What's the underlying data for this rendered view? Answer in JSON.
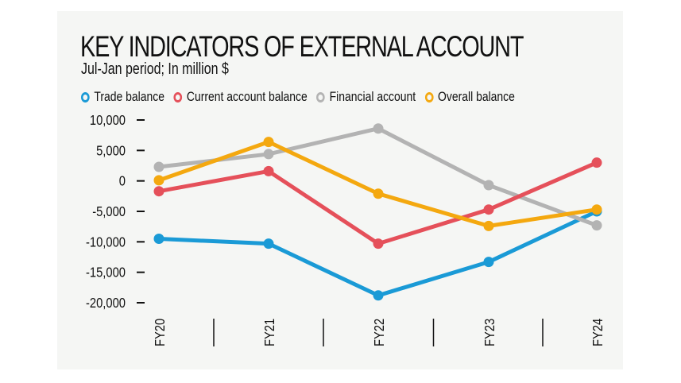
{
  "title": "KEY INDICATORS OF EXTERNAL ACCOUNT",
  "subtitle": "Jul-Jan period; In million $",
  "legend": [
    {
      "label": "Trade balance",
      "color": "#1a9ad6"
    },
    {
      "label": "Current account balance",
      "color": "#e5505a"
    },
    {
      "label": "Financial account",
      "color": "#b3b3b3"
    },
    {
      "label": "Overall balance",
      "color": "#f4a80f"
    }
  ],
  "y_ticks": [
    "10,000",
    "5,000",
    "0",
    "-5,000",
    "-10,000",
    "-15,000",
    "-20,000"
  ],
  "chart_data": {
    "type": "line",
    "title": "KEY INDICATORS OF EXTERNAL ACCOUNT",
    "subtitle": "Jul-Jan period; In million $",
    "xlabel": "",
    "ylabel": "",
    "categories": [
      "FY20",
      "FY21",
      "FY22",
      "FY23",
      "FY24"
    ],
    "ylim": [
      -20000,
      10000
    ],
    "y_ticks": [
      10000,
      5000,
      0,
      -5000,
      -10000,
      -15000,
      -20000
    ],
    "grid": false,
    "legend_position": "top",
    "series": [
      {
        "name": "Trade balance",
        "color": "#1a9ad6",
        "values": [
          -9500,
          -10300,
          -18800,
          -13300,
          -5000
        ]
      },
      {
        "name": "Current account balance",
        "color": "#e5505a",
        "values": [
          -1700,
          1600,
          -10300,
          -4700,
          3000
        ]
      },
      {
        "name": "Financial account",
        "color": "#b3b3b3",
        "values": [
          2300,
          4400,
          8600,
          -700,
          -7300
        ]
      },
      {
        "name": "Overall balance",
        "color": "#f4a80f",
        "values": [
          100,
          6400,
          -2100,
          -7400,
          -4700
        ]
      }
    ]
  }
}
